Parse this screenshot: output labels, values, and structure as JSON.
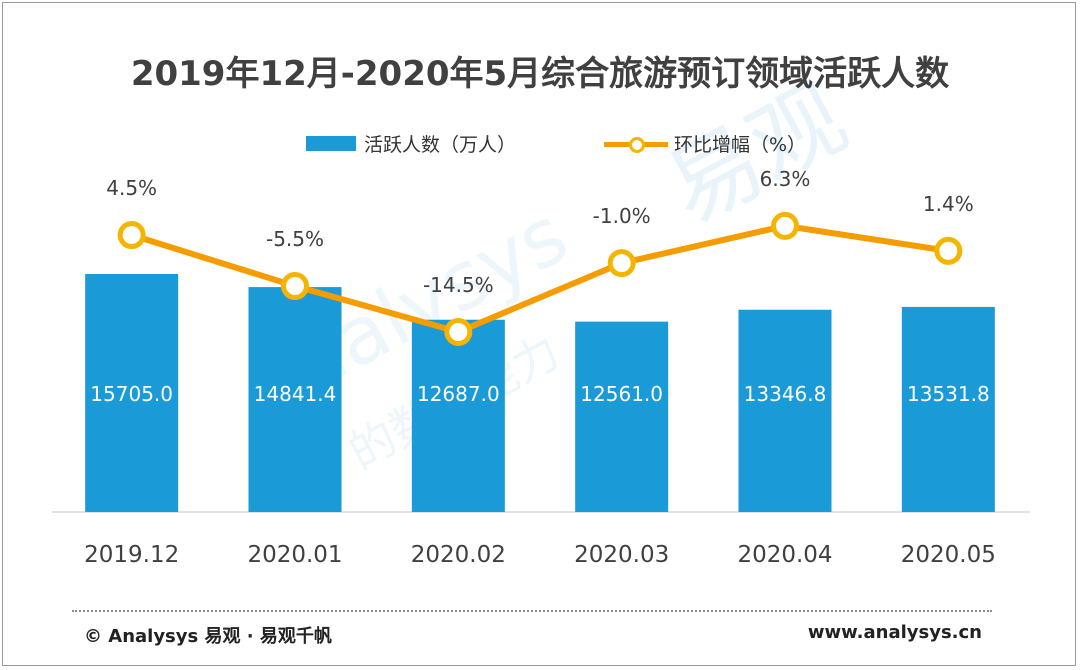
{
  "title": "2019年12月-2020年5月综合旅游预订领域活跃人数",
  "legend": {
    "bars_label": "活跃人数（万人）",
    "line_label": "环比增幅（%）"
  },
  "colors": {
    "bar": "#1a9ad6",
    "line": "#f59c00",
    "marker_fill": "#ffffff",
    "marker_stroke": "#f5b400",
    "axis_text": "#404040",
    "bar_label": "#ffffff"
  },
  "chart_data": {
    "type": "bar",
    "title": "2019年12月-2020年5月综合旅游预订领域活跃人数",
    "categories": [
      "2019.12",
      "2020.01",
      "2020.02",
      "2020.03",
      "2020.04",
      "2020.05"
    ],
    "series": [
      {
        "name": "活跃人数（万人）",
        "type": "bar",
        "values": [
          15705.0,
          14841.4,
          12687.0,
          12561.0,
          13346.8,
          13531.8
        ],
        "labels": [
          "15705.0",
          "14841.4",
          "12687.0",
          "12561.0",
          "13346.8",
          "13531.8"
        ]
      },
      {
        "name": "环比增幅（%）",
        "type": "line",
        "values": [
          4.5,
          -5.5,
          -14.5,
          -1.0,
          6.3,
          1.4
        ],
        "labels": [
          "4.5%",
          "-5.5%",
          "-14.5%",
          "-1.0%",
          "6.3%",
          "1.4%"
        ]
      }
    ],
    "grid": false,
    "legend_position": "top"
  },
  "footer": {
    "source": "© Analysys 易观 · 易观千帆",
    "website": "www.analysys.cn"
  },
  "watermark": {
    "text1": "易观",
    "text2": "Analysys",
    "text3": "的数据能力"
  }
}
